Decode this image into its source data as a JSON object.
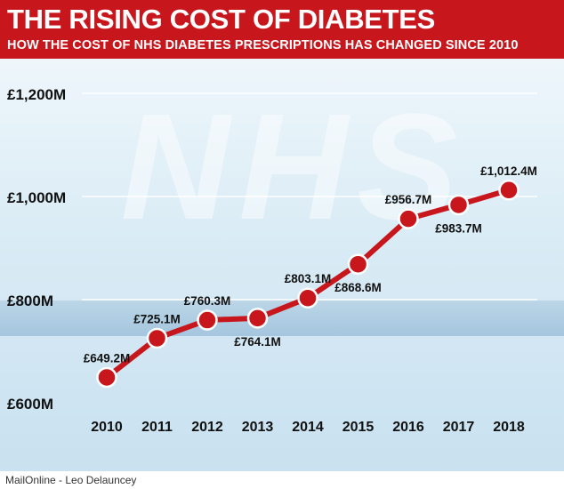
{
  "header": {
    "title": "THE RISING COST OF DIABETES",
    "subtitle": "HOW THE COST OF NHS DIABETES PRESCRIPTIONS HAS CHANGED SINCE 2010"
  },
  "watermark": "NHS",
  "footer": {
    "credit": "MailOnline - Leo Delauncey"
  },
  "colors": {
    "header_bg": "#c8161d",
    "line": "#c8161d",
    "marker": "#c8161d",
    "marker_stroke": "#ffffff"
  },
  "chart_data": {
    "type": "line",
    "title": "THE RISING COST OF DIABETES",
    "subtitle": "HOW THE COST OF NHS DIABETES PRESCRIPTIONS HAS CHANGED SINCE 2010",
    "xlabel": "",
    "ylabel": "",
    "x": [
      "2010",
      "2011",
      "2012",
      "2013",
      "2014",
      "2015",
      "2016",
      "2017",
      "2018"
    ],
    "series": [
      {
        "values": [
          649.2,
          725.1,
          760.3,
          764.1,
          803.1,
          868.6,
          956.7,
          983.7,
          1012.4
        ],
        "labels": [
          "£649.2M",
          "£725.1M",
          "£760.3M",
          "£764.1M",
          "£803.1M",
          "£868.6M",
          "£956.7M",
          "£983.7M",
          "£1,012.4M"
        ]
      }
    ],
    "ylim": [
      600,
      1200
    ],
    "yticks": [
      600,
      800,
      1000,
      1200
    ],
    "ytick_labels": [
      "£600M",
      "£800M",
      "£1,000M",
      "£1,200M"
    ],
    "grid": true,
    "legend": "none"
  }
}
